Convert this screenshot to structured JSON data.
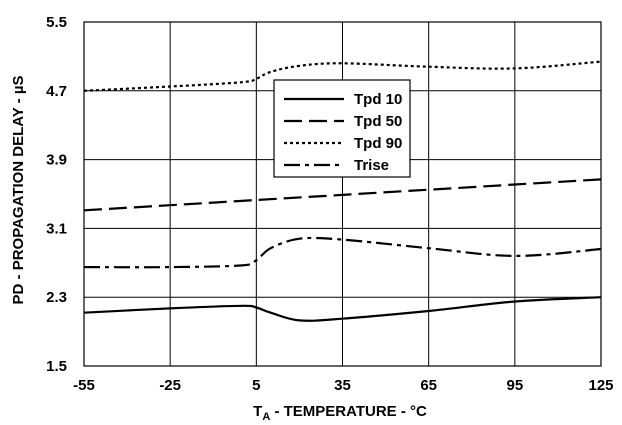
{
  "chart_data": {
    "type": "line",
    "xlabel_main": "T",
    "xlabel_sub": "A",
    "xlabel_rest": " - TEMPERATURE - °C",
    "ylabel": "PD - PROPAGATION DELAY - µS",
    "xlim": [
      -55,
      125
    ],
    "ylim": [
      1.5,
      5.5
    ],
    "xticks": [
      "-55",
      "-25",
      "5",
      "35",
      "65",
      "95",
      "125"
    ],
    "yticks": [
      "1.5",
      "2.3",
      "3.1",
      "3.9",
      "4.7",
      "5.5"
    ],
    "grid": true,
    "legend_position": "upper-center",
    "series": [
      {
        "name": "Tpd 10",
        "style": "solid",
        "x": [
          -55,
          -25,
          0,
          5,
          10,
          20,
          35,
          65,
          95,
          125
        ],
        "y": [
          2.12,
          2.17,
          2.2,
          2.18,
          2.12,
          2.03,
          2.05,
          2.14,
          2.25,
          2.3
        ]
      },
      {
        "name": "Tpd 50",
        "style": "dashed",
        "x": [
          -55,
          -25,
          5,
          35,
          65,
          95,
          125
        ],
        "y": [
          3.31,
          3.37,
          3.43,
          3.49,
          3.55,
          3.61,
          3.67
        ]
      },
      {
        "name": "Tpd 90",
        "style": "dotted",
        "x": [
          -55,
          -25,
          0,
          5,
          10,
          20,
          35,
          65,
          95,
          125
        ],
        "y": [
          4.7,
          4.75,
          4.8,
          4.84,
          4.92,
          4.99,
          5.02,
          4.98,
          4.96,
          5.04
        ]
      },
      {
        "name": "Trise",
        "style": "dashdot",
        "x": [
          -55,
          -25,
          0,
          5,
          10,
          20,
          35,
          65,
          95,
          125
        ],
        "y": [
          2.65,
          2.65,
          2.67,
          2.73,
          2.87,
          2.98,
          2.97,
          2.87,
          2.78,
          2.86
        ]
      }
    ]
  }
}
